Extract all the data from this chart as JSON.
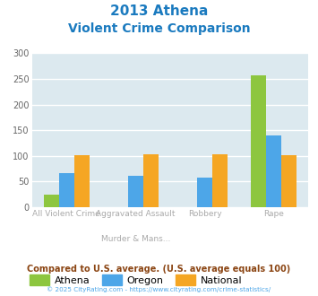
{
  "title_line1": "2013 Athena",
  "title_line2": "Violent Crime Comparison",
  "title_color": "#1a7abf",
  "cat_labels_top": [
    "All Violent Crime",
    "Aggravated Assault",
    "Robbery",
    "Rape"
  ],
  "cat_labels_bot": [
    "",
    "Murder & Mans...",
    "",
    ""
  ],
  "series": {
    "Athena": [
      25,
      0,
      0,
      257
    ],
    "Oregon": [
      66,
      62,
      57,
      140
    ],
    "National": [
      102,
      103,
      103,
      102
    ]
  },
  "colors": {
    "Athena": "#8dc63f",
    "Oregon": "#4da6e8",
    "National": "#f5a623"
  },
  "ylim": [
    0,
    300
  ],
  "yticks": [
    0,
    50,
    100,
    150,
    200,
    250,
    300
  ],
  "plot_bg": "#dce9ef",
  "footer_text": "Compared to U.S. average. (U.S. average equals 100)",
  "footer_color": "#8b4513",
  "copyright_text": "© 2025 CityRating.com - https://www.cityrating.com/crime-statistics/",
  "copyright_color": "#4da6e8",
  "grid_color": "#ffffff",
  "tick_label_color": "#aaaaaa",
  "series_order": [
    "Athena",
    "Oregon",
    "National"
  ]
}
